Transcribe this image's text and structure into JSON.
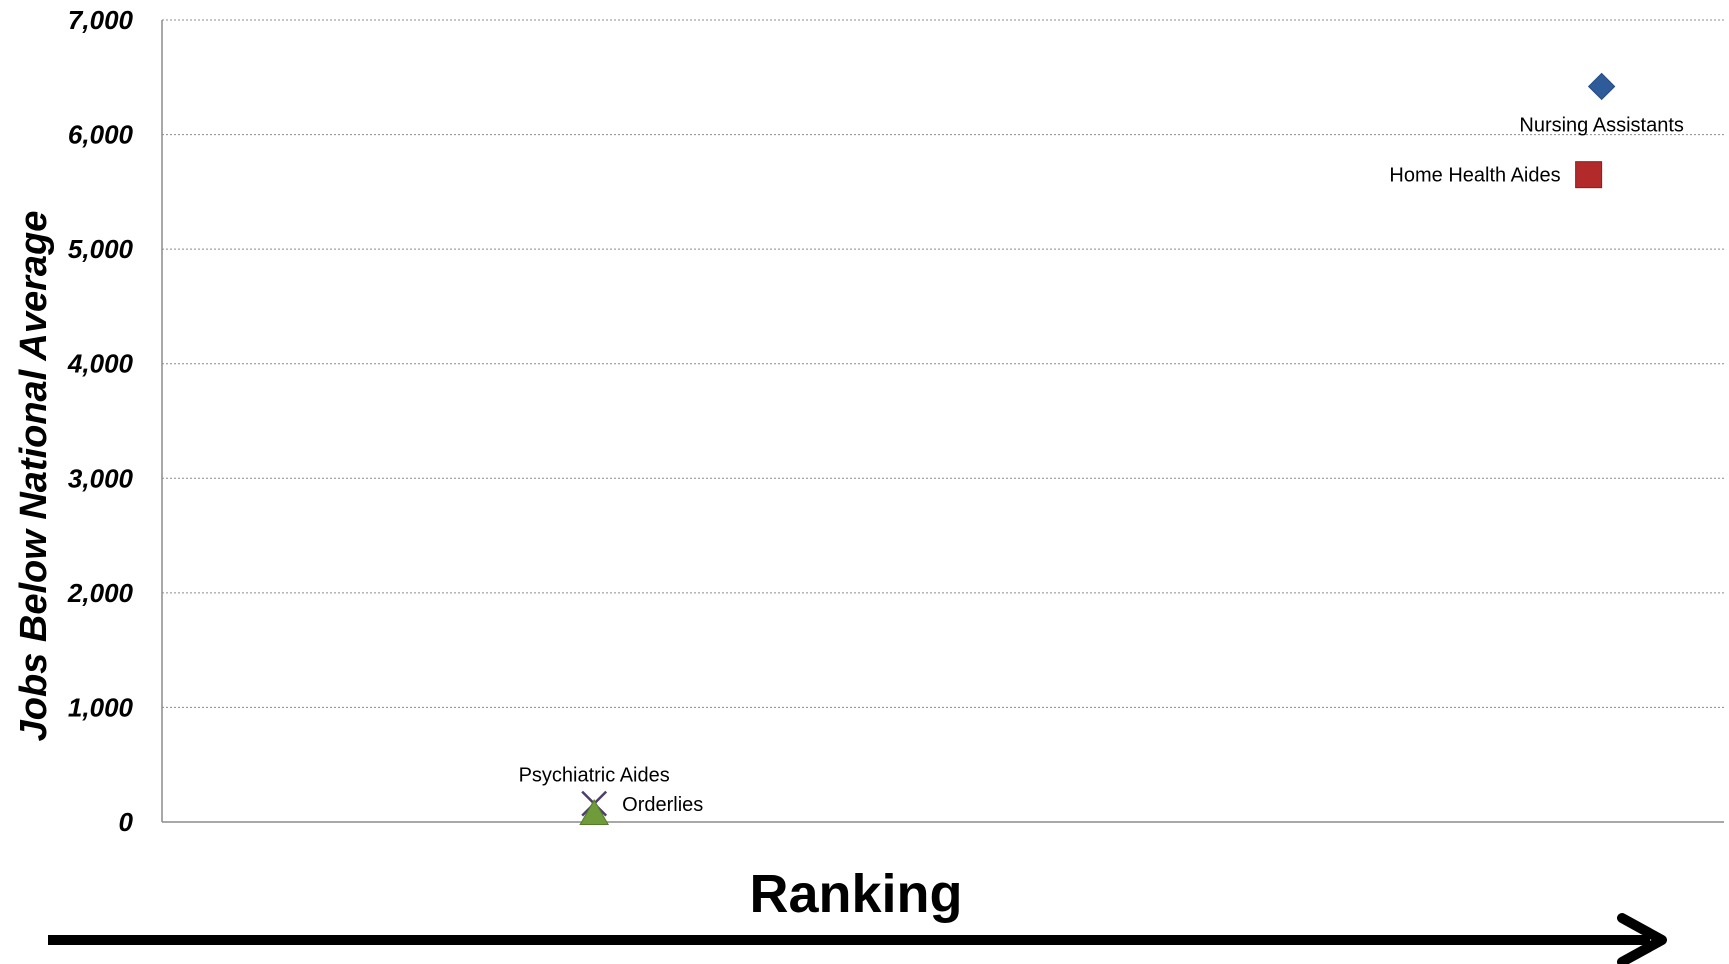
{
  "chart_data": {
    "type": "scatter",
    "title": "",
    "xlabel": "Ranking",
    "ylabel": "Jobs Below National Average",
    "ylim": [
      0,
      7000
    ],
    "xlim": [
      0,
      6
    ],
    "yticks": [
      {
        "value": 0,
        "label": "0"
      },
      {
        "value": 1000,
        "label": "1,000"
      },
      {
        "value": 2000,
        "label": "2,000"
      },
      {
        "value": 3000,
        "label": "3,000"
      },
      {
        "value": 4000,
        "label": "4,000"
      },
      {
        "value": 5000,
        "label": "5,000"
      },
      {
        "value": 6000,
        "label": "6,000"
      },
      {
        "value": 7000,
        "label": "7,000"
      }
    ],
    "grid": true,
    "x_axis_arrow": true,
    "series": [
      {
        "name": "Nursing Assistants",
        "x": 5.53,
        "y": 6420,
        "marker": "diamond",
        "color": "#2e5b9a",
        "label_position": "below"
      },
      {
        "name": "Home Health Aides",
        "x": 5.48,
        "y": 5650,
        "marker": "square",
        "color": "#b22a2a",
        "label_position": "left"
      },
      {
        "name": "Psychiatric Aides",
        "x": 1.66,
        "y": 160,
        "marker": "x",
        "color": "#4d3d6b",
        "label_position": "above"
      },
      {
        "name": "Orderlies",
        "x": 1.66,
        "y": 70,
        "marker": "triangle",
        "color": "#6f9b3a",
        "label_position": "right"
      }
    ]
  }
}
